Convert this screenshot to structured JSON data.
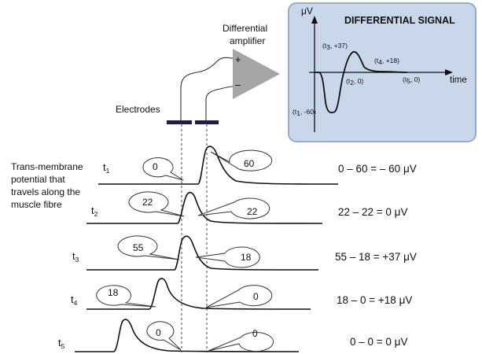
{
  "diagram": {
    "amplifier_label": [
      "Differential",
      "amplifier"
    ],
    "plus": "+",
    "minus": "–",
    "electrodes_label": "Electrodes",
    "description": [
      "Trans-membrane",
      "potential that",
      "travels along the",
      "muscle fibre"
    ],
    "inset": {
      "title": "DIFFERENTIAL SIGNAL",
      "y_unit": "μV",
      "x_label": "time",
      "points": [
        {
          "t": "t",
          "sub": "1",
          "value": "-60"
        },
        {
          "t": "t",
          "sub": "2",
          "value": "0"
        },
        {
          "t": "t",
          "sub": "3",
          "value": "+37"
        },
        {
          "t": "t",
          "sub": "4",
          "value": "+18"
        },
        {
          "t": "t",
          "sub": "5",
          "value": "0"
        }
      ]
    },
    "rows": [
      {
        "t": "t",
        "sub": "1",
        "left": "0",
        "right": "60",
        "equation": "0 – 60 =  – 60 μV"
      },
      {
        "t": "t",
        "sub": "2",
        "left": "22",
        "right": "22",
        "equation": "22 – 22 =    0 μV"
      },
      {
        "t": "t",
        "sub": "3",
        "left": "55",
        "right": "18",
        "equation": "55 – 18 = +37 μV"
      },
      {
        "t": "t",
        "sub": "4",
        "left": "18",
        "right": "0",
        "equation": "18 – 0 = +18 μV"
      },
      {
        "t": "t",
        "sub": "5",
        "left": "0",
        "right": "0",
        "equation": "0 – 0 =    0 μV"
      }
    ],
    "colors": {
      "inset_fill": "#c9d7ea",
      "inset_border": "#9aaac4",
      "amplifier": "#a6a6a6",
      "electrode": "#1c1c52"
    }
  }
}
